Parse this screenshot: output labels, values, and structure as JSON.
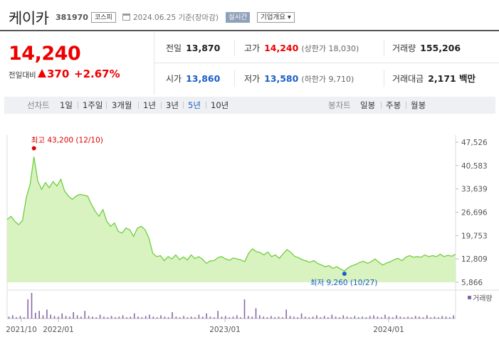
{
  "header": {
    "name": "케이카",
    "code": "381970",
    "market": "코스피",
    "date": "2024.06.25 기준(장마감)",
    "realtime": "실시간",
    "company_info": "기업개요 ▾"
  },
  "price": {
    "current": "14,240",
    "change_label": "전일대비",
    "change": "370",
    "change_pct": "+2.67%"
  },
  "stats": {
    "prev_close_label": "전일",
    "prev_close": "13,870",
    "high_label": "고가",
    "high": "14,240",
    "upper_limit": "(상한가 18,030)",
    "volume_label": "거래량",
    "volume": "155,206",
    "open_label": "시가",
    "open": "13,860",
    "low_label": "저가",
    "low": "13,580",
    "lower_limit": "(하한가 9,710)",
    "amount_label": "거래대금",
    "amount": "2,171 백만"
  },
  "period_bar": {
    "line_label": "선차트",
    "periods": [
      "1일",
      "1주일",
      "3개월",
      "1년",
      "3년",
      "5년",
      "10년"
    ],
    "selected": "5년",
    "candle_label": "봉차트",
    "candles": [
      "일봉",
      "주봉",
      "월봉"
    ]
  },
  "colors": {
    "up": "#e00000",
    "down": "#1a5ec9",
    "area_fill": "#d8f2c0",
    "area_line": "#66cc33",
    "volume": "#8866aa"
  },
  "chart_data": {
    "type": "area",
    "y_ticks": [
      "47,526",
      "40,583",
      "33,639",
      "26,696",
      "19,753",
      "12,809",
      "5,866"
    ],
    "ylim": [
      5866,
      47526
    ],
    "x_ticks": [
      "2021/10",
      "2022/01",
      "2023/01",
      "2024/01"
    ],
    "high_annotation": "최고 43,200 (12/10)",
    "low_annotation": "최저 9,260 (10/27)",
    "volume_label": "거래량",
    "series": [
      {
        "values": [
          24500,
          25500,
          24000,
          23000,
          24200,
          31000,
          35000,
          43200,
          36000,
          33500,
          35500,
          34000,
          35800,
          34500,
          36500,
          33000,
          31500,
          30500,
          31500,
          32000,
          31800,
          31500,
          29000,
          27000,
          25500,
          27500,
          24000,
          22500,
          23500,
          21000,
          20500,
          22000,
          21500,
          19500,
          22000,
          22500,
          21500,
          19000,
          14500,
          13500,
          13800,
          12300,
          13500,
          12800,
          14000,
          12600,
          13400,
          12500,
          14000,
          12900,
          13500,
          12700,
          11500,
          12200,
          12300,
          13200,
          13500,
          12800,
          12400,
          13100,
          12800,
          12500,
          12000,
          14500,
          15800,
          15000,
          14700,
          14000,
          14900,
          13500,
          14000,
          13000,
          14300,
          15600,
          14800,
          13600,
          13200,
          12600,
          12200,
          11800,
          12300,
          11500,
          11000,
          10500,
          10800,
          10000,
          10500,
          9800,
          9260,
          10200,
          10800,
          11200,
          11800,
          12100,
          11500,
          12000,
          12800,
          11800,
          11000,
          11600,
          12000,
          12600,
          13000,
          12300,
          13300,
          13800,
          13300,
          13500,
          13300,
          14000,
          13500,
          13800,
          13500,
          14200,
          13500,
          13900,
          13600,
          14240
        ]
      }
    ],
    "volume": [
      3,
      5,
      2,
      4,
      2,
      30,
      40,
      9,
      12,
      5,
      14,
      6,
      4,
      3,
      8,
      4,
      3,
      10,
      5,
      3,
      12,
      4,
      3,
      2,
      6,
      3,
      2,
      4,
      2,
      3,
      5,
      2,
      3,
      8,
      3,
      2,
      4,
      6,
      3,
      2,
      5,
      3,
      2,
      10,
      3,
      2,
      4,
      2,
      3,
      2,
      6,
      3,
      8,
      3,
      2,
      12,
      3,
      4,
      2,
      3,
      5,
      2,
      30,
      4,
      3,
      16,
      5,
      3,
      2,
      4,
      2,
      3,
      2,
      14,
      4,
      3,
      2,
      8,
      3,
      2,
      3,
      5,
      2,
      4,
      2,
      6,
      3,
      2,
      5,
      3,
      2,
      4,
      2,
      3,
      2,
      4,
      5,
      3,
      2,
      6,
      3,
      2,
      5,
      3,
      2,
      3,
      2,
      4,
      3,
      2,
      5,
      2,
      3,
      2,
      4,
      3,
      2,
      5
    ]
  }
}
